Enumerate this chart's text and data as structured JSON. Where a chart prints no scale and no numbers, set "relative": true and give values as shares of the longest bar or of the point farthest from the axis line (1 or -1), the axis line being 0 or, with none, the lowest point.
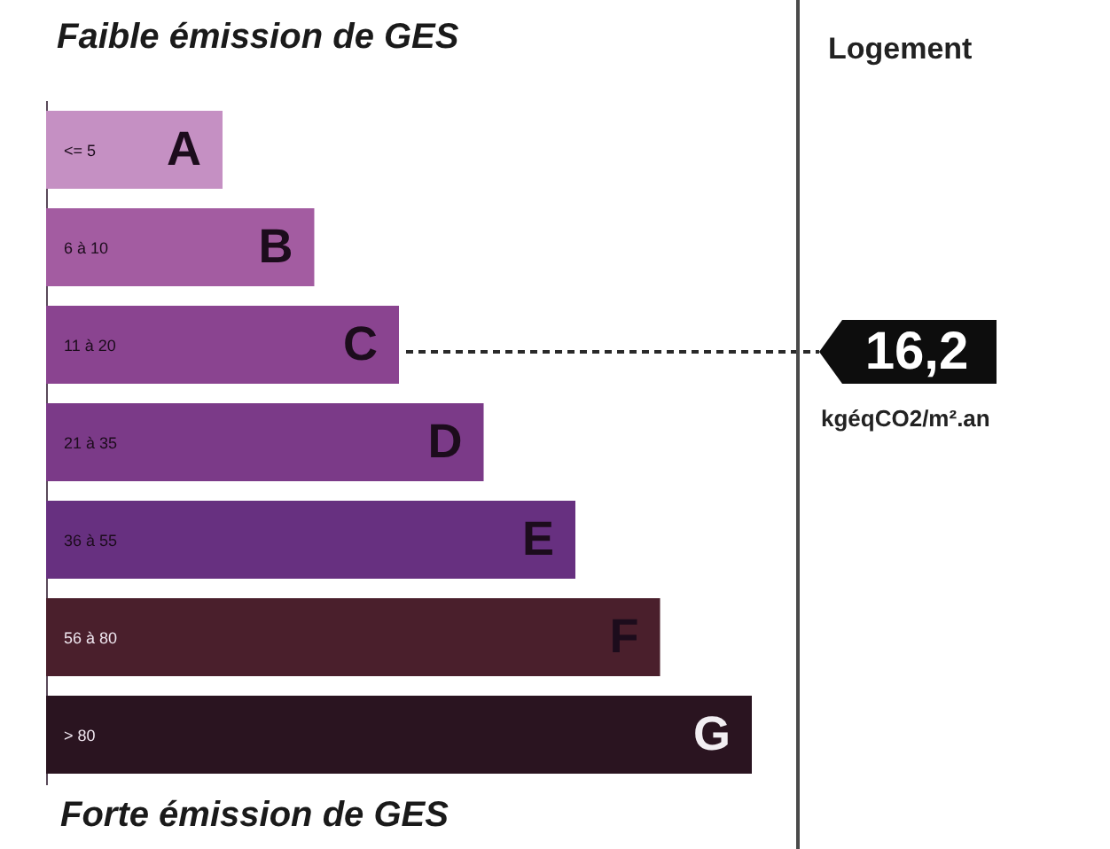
{
  "chart_data": {
    "type": "bar",
    "orientation": "horizontal",
    "relative": true,
    "title": "Faible émission de GES",
    "categories": [
      "A",
      "B",
      "C",
      "D",
      "E",
      "F",
      "G"
    ],
    "values": [
      0.25,
      0.38,
      0.5,
      0.62,
      0.75,
      0.87,
      1
    ],
    "colors": [
      "#c590c3",
      "#a35ca1",
      "#8a4490",
      "#7b3a88",
      "#673080",
      "#4a1f2c",
      "#2a1420"
    ],
    "annotations": [
      "<= 5",
      "6 à 10",
      "11 à 20",
      "21 à 35",
      "36 à 55",
      "56 à 80",
      "> 80",
      "Forte émission de GES",
      "Logement",
      {
        "text": "16,2",
        "x": 0.5,
        "y": "C"
      },
      "kgéqCO2/m².an"
    ]
  }
}
